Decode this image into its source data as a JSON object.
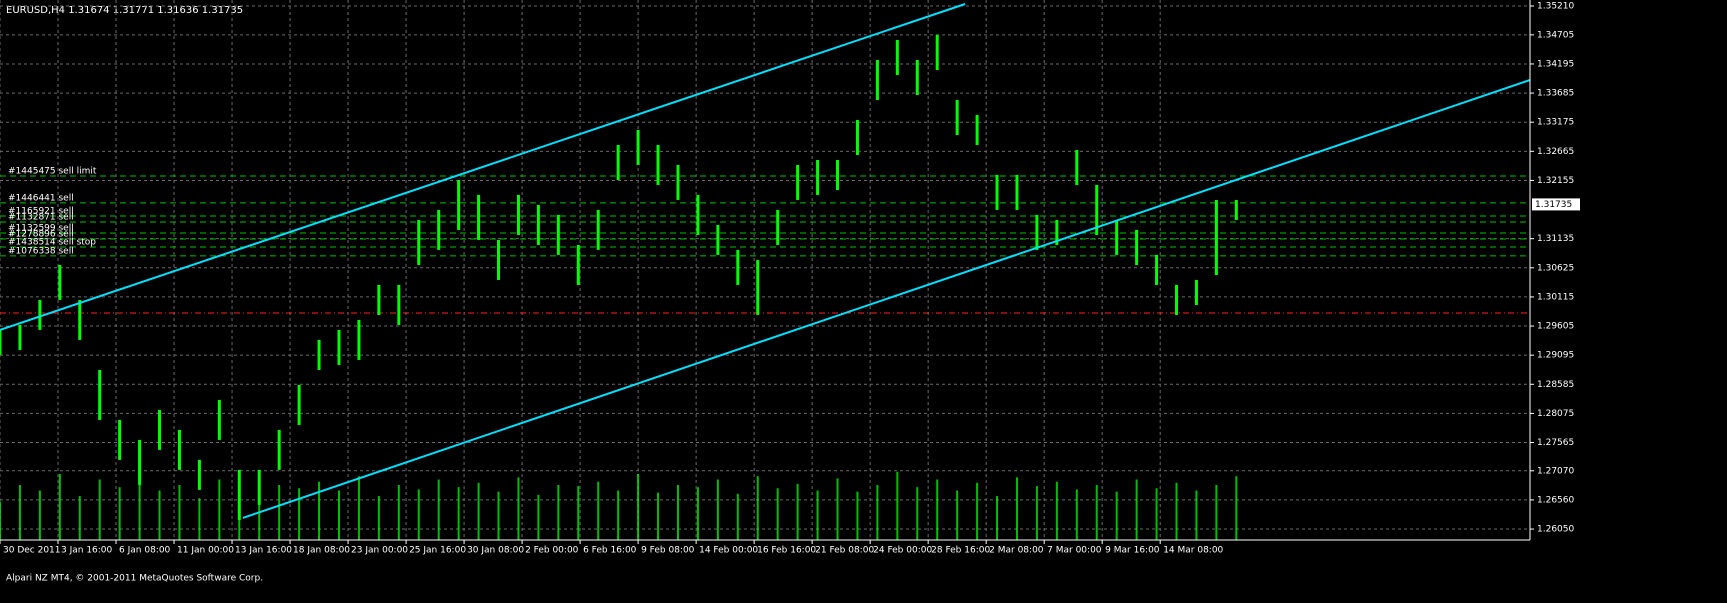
{
  "chart_data": {
    "type": "range",
    "title": "EURUSD,H4  1.31674 1.31771 1.31636 1.31735",
    "footer": "Alpari NZ MT4, © 2001-2011 MetaQuotes Software Corp.",
    "color": "#00ff00",
    "grid": true,
    "ylim": [
      1.25858,
      1.35315
    ],
    "yticks": [
      {
        "value": 1.3521,
        "label": "1.35210"
      },
      {
        "value": 1.34705,
        "label": "1.34705"
      },
      {
        "value": 1.34195,
        "label": "1.34195"
      },
      {
        "value": 1.33685,
        "label": "1.33685"
      },
      {
        "value": 1.33175,
        "label": "1.33175"
      },
      {
        "value": 1.32665,
        "label": "1.32665"
      },
      {
        "value": 1.32155,
        "label": "1.32155"
      },
      {
        "value": 1.31135,
        "label": "1.31135"
      },
      {
        "value": 1.30625,
        "label": "1.30625"
      },
      {
        "value": 1.30115,
        "label": "1.30115"
      },
      {
        "value": 1.29605,
        "label": "1.29605"
      },
      {
        "value": 1.29095,
        "label": "1.29095"
      },
      {
        "value": 1.28585,
        "label": "1.28585"
      },
      {
        "value": 1.28075,
        "label": "1.28075"
      },
      {
        "value": 1.27565,
        "label": "1.27565"
      },
      {
        "value": 1.2707,
        "label": "1.27070"
      },
      {
        "value": 1.2656,
        "label": "1.26560"
      },
      {
        "value": 1.2605,
        "label": "1.26050"
      }
    ],
    "xlim": [
      0,
      422
    ],
    "xticks": [
      {
        "value": 0,
        "label": "30 Dec 2011"
      },
      {
        "value": 16,
        "label": "3 Jan 16:00"
      },
      {
        "value": 32,
        "label": "6 Jan 08:00"
      },
      {
        "value": 48,
        "label": "11 Jan 00:00"
      },
      {
        "value": 64,
        "label": "13 Jan 16:00"
      },
      {
        "value": 80,
        "label": "18 Jan 08:00"
      },
      {
        "value": 96,
        "label": "23 Jan 00:00"
      },
      {
        "value": 112,
        "label": "25 Jan 16:00"
      },
      {
        "value": 128,
        "label": "30 Jan 08:00"
      },
      {
        "value": 144,
        "label": "2 Feb 00:00"
      },
      {
        "value": 160,
        "label": "6 Feb 16:00"
      },
      {
        "value": 176,
        "label": "9 Feb 08:00"
      },
      {
        "value": 192,
        "label": "14 Feb 00:00"
      },
      {
        "value": 208,
        "label": "16 Feb 16:00"
      },
      {
        "value": 224,
        "label": "21 Feb 08:00"
      },
      {
        "value": 240,
        "label": "24 Feb 00:00"
      },
      {
        "value": 256,
        "label": "28 Feb 16:00"
      },
      {
        "value": 272,
        "label": "2 Mar 08:00"
      },
      {
        "value": 288,
        "label": "7 Mar 00:00"
      },
      {
        "value": 304,
        "label": "9 Mar 16:00"
      },
      {
        "value": 320,
        "label": "14 Mar 08:00"
      }
    ],
    "x": [
      0,
      5.5,
      11,
      16.5,
      22,
      27.5,
      33,
      38.5,
      44,
      49.5,
      55,
      60.5,
      66,
      71.5,
      77,
      82.5,
      88,
      93.5,
      99,
      104.5,
      110,
      115.5,
      121,
      126.5,
      132,
      137.5,
      143,
      148.5,
      154,
      159.5,
      165,
      170.5,
      176,
      181.5,
      187,
      192.5,
      198,
      203.5,
      209,
      214.5,
      220,
      225.5,
      231,
      236.5,
      242,
      247.5,
      253,
      258.5,
      264,
      269.5,
      275,
      280.5,
      286,
      291.5,
      297,
      302.5,
      308,
      313.5,
      319,
      324.5,
      330,
      335.5,
      341
    ],
    "high": [
      1.29537,
      1.29624,
      1.30062,
      1.30675,
      1.30062,
      1.28836,
      1.27961,
      1.27611,
      1.28136,
      1.27786,
      1.27261,
      1.28311,
      1.27086,
      1.27086,
      1.27786,
      1.28574,
      1.29362,
      1.29537,
      1.29712,
      1.30325,
      1.30325,
      1.31463,
      1.31638,
      1.32163,
      1.31901,
      1.31113,
      1.31901,
      1.31726,
      1.3155,
      1.31025,
      1.31638,
      1.32776,
      1.33039,
      1.32776,
      1.32426,
      1.31901,
      1.31375,
      1.30938,
      1.30763,
      1.31638,
      1.32426,
      1.32513,
      1.32513,
      1.33214,
      1.34264,
      1.34615,
      1.34264,
      1.34702,
      1.33564,
      1.33301,
      1.32251,
      1.32251,
      1.3155,
      1.31463,
      1.32689,
      1.32076,
      1.31463,
      1.31288,
      1.3085,
      1.30325,
      1.30412,
      1.31813,
      1.31813
    ],
    "low": [
      1.29099,
      1.29186,
      1.29537,
      1.30062,
      1.29362,
      1.27961,
      1.27261,
      1.26823,
      1.27436,
      1.27086,
      1.26736,
      1.27611,
      1.2621,
      1.26473,
      1.27086,
      1.27873,
      1.28836,
      1.28924,
      1.29011,
      1.29799,
      1.29624,
      1.30675,
      1.30938,
      1.31288,
      1.31113,
      1.30412,
      1.312,
      1.31025,
      1.3085,
      1.30325,
      1.30938,
      1.32163,
      1.32426,
      1.32076,
      1.31813,
      1.312,
      1.3085,
      1.30325,
      1.29799,
      1.31025,
      1.31813,
      1.31901,
      1.31988,
      1.32601,
      1.33564,
      1.34002,
      1.33651,
      1.34089,
      1.32951,
      1.32776,
      1.31638,
      1.31638,
      1.30938,
      1.31025,
      1.32076,
      1.312,
      1.3085,
      1.30675,
      1.30325,
      1.29799,
      1.29974,
      1.305,
      1.31463
    ],
    "volume": [
      35,
      50,
      45,
      60,
      40,
      55,
      48,
      52,
      45,
      50,
      38,
      55,
      60,
      42,
      50,
      47,
      53,
      45,
      58,
      40,
      50,
      46,
      55,
      48,
      52,
      44,
      57,
      41,
      50,
      49,
      53,
      45,
      60,
      43,
      50,
      48,
      55,
      42,
      58,
      47,
      51,
      45,
      56,
      44,
      50,
      62,
      48,
      55,
      45,
      52,
      40,
      57,
      49,
      53,
      46,
      50,
      44,
      55,
      47,
      52,
      45,
      50,
      58
    ],
    "volume_lim": [
      0,
      100
    ],
    "orders": [
      {
        "label": "#1445475 sell limit",
        "price": 1.32233
      },
      {
        "label": "#1446441 sell",
        "price": 1.31761
      },
      {
        "label": "#1165921 sell",
        "price": 1.31533
      },
      {
        "label": "#1132871 sell",
        "price": 1.31428
      },
      {
        "label": "#1132599 sell",
        "price": 1.31235
      },
      {
        "label": "#1278896 sell",
        "price": 1.3113
      },
      {
        "label": "#1438514 sell stop",
        "price": 1.3099
      },
      {
        "label": "#1076338 sell",
        "price": 1.30833
      }
    ],
    "order_color": "#00c000",
    "stop_line": {
      "price": 1.29834,
      "color": "#ff2020"
    },
    "trendlines": [
      {
        "x": [
          0,
          266.2
        ],
        "y": [
          1.29537,
          1.35245
        ]
      },
      {
        "x": [
          67,
          422
        ],
        "y": [
          1.26245,
          1.33914
        ]
      }
    ],
    "trend_color": "#00e0ff",
    "price": {
      "value": 1.31735,
      "label": "1.31735"
    }
  }
}
